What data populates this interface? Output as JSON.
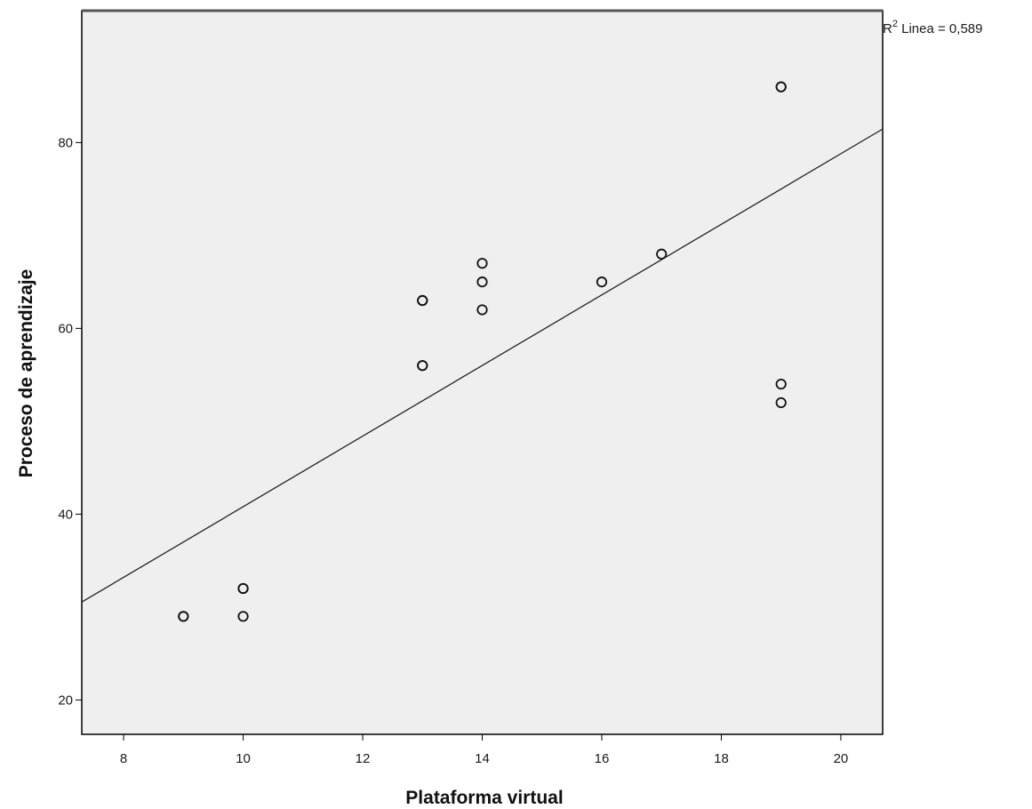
{
  "chart_data": {
    "type": "scatter",
    "title": "",
    "xlabel": "Plataforma virtual",
    "ylabel": "Proceso de aprendizaje",
    "xlim": [
      7.3,
      20.7
    ],
    "ylim": [
      16.3,
      94.2
    ],
    "x_ticks": [
      8,
      10,
      12,
      14,
      16,
      18,
      20
    ],
    "x_tick_labels": [
      "8",
      "10",
      "12",
      "14",
      "16",
      "18",
      "20"
    ],
    "y_ticks": [
      20,
      40,
      60,
      80
    ],
    "y_tick_labels": [
      "20",
      "40",
      "60",
      "80"
    ],
    "grid": false,
    "background_color": "#efefef",
    "marker": "open-circle",
    "points": [
      {
        "x": 9,
        "y": 29
      },
      {
        "x": 9,
        "y": 29
      },
      {
        "x": 10,
        "y": 29
      },
      {
        "x": 10,
        "y": 32
      },
      {
        "x": 10,
        "y": 32
      },
      {
        "x": 13,
        "y": 56
      },
      {
        "x": 13,
        "y": 56
      },
      {
        "x": 13,
        "y": 63
      },
      {
        "x": 13,
        "y": 63
      },
      {
        "x": 14,
        "y": 62
      },
      {
        "x": 14,
        "y": 65
      },
      {
        "x": 14,
        "y": 67
      },
      {
        "x": 16,
        "y": 65
      },
      {
        "x": 17,
        "y": 68
      },
      {
        "x": 19,
        "y": 86
      },
      {
        "x": 19,
        "y": 86
      },
      {
        "x": 19,
        "y": 54
      },
      {
        "x": 19,
        "y": 52
      }
    ],
    "fit_line": {
      "type": "linear",
      "slope": 3.8,
      "intercept": 2.8
    },
    "annotation": {
      "r2_prefix": "R",
      "r2_superscript": "2",
      "r2_suffix": " Linea = 0,589"
    }
  }
}
